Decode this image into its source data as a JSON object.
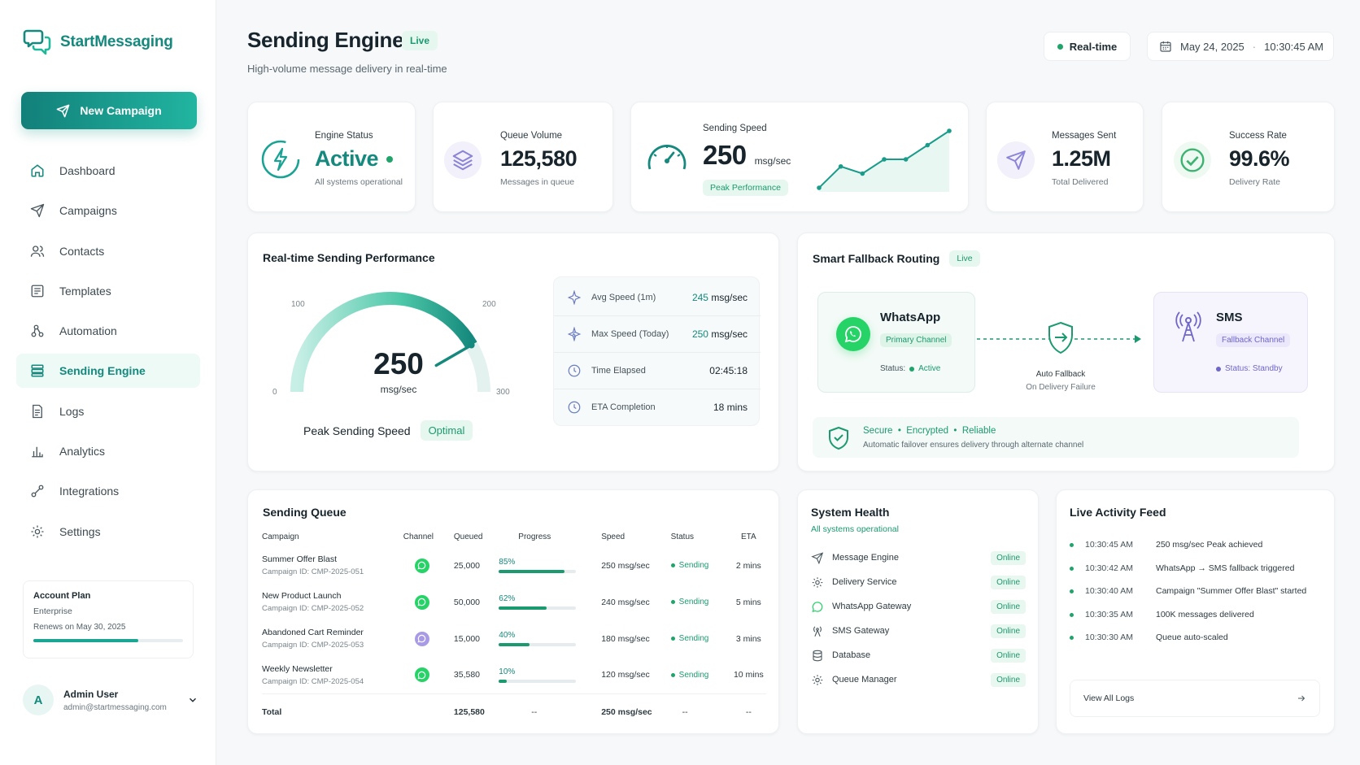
{
  "brand": {
    "name": "StartMessaging"
  },
  "sidebar": {
    "new_campaign": "New Campaign",
    "items": [
      {
        "label": "Dashboard",
        "icon": "home-icon"
      },
      {
        "label": "Campaigns",
        "icon": "send-icon"
      },
      {
        "label": "Contacts",
        "icon": "users-icon"
      },
      {
        "label": "Templates",
        "icon": "template-icon"
      },
      {
        "label": "Automation",
        "icon": "automation-icon"
      },
      {
        "label": "Sending Engine",
        "icon": "server-icon"
      },
      {
        "label": "Logs",
        "icon": "document-icon"
      },
      {
        "label": "Analytics",
        "icon": "bar-chart-icon"
      },
      {
        "label": "Integrations",
        "icon": "link-icon"
      },
      {
        "label": "Settings",
        "icon": "gear-icon"
      }
    ],
    "active_item": "Sending Engine",
    "plan": {
      "title": "Account Plan",
      "tier": "Enterprise",
      "renews": "Renews on May 30, 2025",
      "progress": 0.7
    },
    "user": {
      "initial": "A",
      "name": "Admin User",
      "email": "admin@startmessaging.com"
    }
  },
  "header": {
    "title": "Sending Engine",
    "badge": "Live",
    "subtitle": "High-volume message delivery in real-time",
    "realtime": "Real-time",
    "date": "May 24, 2025",
    "time": "10:30:45 AM"
  },
  "stats": {
    "engine": {
      "label": "Engine Status",
      "value": "Active",
      "sub": "All systems operational"
    },
    "queue": {
      "label": "Queue Volume",
      "value": "125,580",
      "sub": "Messages in queue"
    },
    "speed": {
      "label": "Sending Speed",
      "value": "250",
      "unit": "msg/sec",
      "badge": "Peak Performance",
      "sparkline": [
        3,
        6,
        5,
        7,
        7,
        9,
        11
      ]
    },
    "sent": {
      "label": "Messages Sent",
      "value": "1.25M",
      "sub": "Total Delivered"
    },
    "success": {
      "label": "Success Rate",
      "value": "99.6%",
      "sub": "Delivery Rate"
    }
  },
  "performance": {
    "title": "Real-time Sending Performance",
    "gauge": {
      "value": 250,
      "value_text": "250",
      "unit": "msg/sec",
      "min": 0,
      "max": 300,
      "tick_0": "0",
      "tick_100": "100",
      "tick_200": "200",
      "tick_300": "300"
    },
    "caption": "Peak Sending Speed",
    "caption_badge": "Optimal",
    "metrics": [
      {
        "label": "Avg Speed (1m)",
        "value_num": "245",
        "value_unit": " msg/sec",
        "icon": "sparkle-icon"
      },
      {
        "label": "Max Speed (Today)",
        "value_num": "250",
        "value_unit": " msg/sec",
        "icon": "sparkle-bolt-icon"
      },
      {
        "label": "Time Elapsed",
        "value_num": "",
        "value_unit": "02:45:18",
        "icon": "clock-icon"
      },
      {
        "label": "ETA Completion",
        "value_num": "",
        "value_unit": "18 mins",
        "icon": "clock-icon"
      }
    ]
  },
  "fallback": {
    "title": "Smart Fallback Routing",
    "badge": "Live",
    "primary": {
      "name": "WhatsApp",
      "badge": "Primary Channel",
      "status_label": "Status:",
      "status": "Active"
    },
    "secondary": {
      "name": "SMS",
      "badge": "Fallback Channel",
      "status": "Status: Standby"
    },
    "connector": {
      "title": "Auto Fallback",
      "sub": "On Delivery Failure"
    },
    "secure": {
      "headline": "Secure  •  Encrypted  •  Reliable",
      "sub": "Automatic failover ensures delivery through alternate channel"
    }
  },
  "queue_table": {
    "title": "Sending Queue",
    "headers": [
      "Campaign",
      "Channel",
      "Queued",
      "Progress",
      "Speed",
      "Status",
      "ETA"
    ],
    "rows": [
      {
        "name": "Summer Offer Blast",
        "id": "Campaign ID: CMP-2025-051",
        "channel": "whatsapp",
        "queued": "25,000",
        "progress": "85%",
        "progress_value": 0.85,
        "speed": "250 msg/sec",
        "status": "Sending",
        "eta": "2 mins"
      },
      {
        "name": "New Product Launch",
        "id": "Campaign ID: CMP-2025-052",
        "channel": "whatsapp",
        "queued": "50,000",
        "progress": "62%",
        "progress_value": 0.62,
        "speed": "240 msg/sec",
        "status": "Sending",
        "eta": "5 mins"
      },
      {
        "name": "Abandoned Cart Reminder",
        "id": "Campaign ID: CMP-2025-053",
        "channel": "viber",
        "queued": "15,000",
        "progress": "40%",
        "progress_value": 0.4,
        "speed": "180 msg/sec",
        "status": "Sending",
        "eta": "3 mins"
      },
      {
        "name": "Weekly Newsletter",
        "id": "Campaign ID: CMP-2025-054",
        "channel": "whatsapp",
        "queued": "35,580",
        "progress": "10%",
        "progress_value": 0.1,
        "speed": "120 msg/sec",
        "status": "Sending",
        "eta": "10 mins"
      }
    ],
    "total": {
      "label": "Total",
      "queued": "125,580",
      "progress": "--",
      "speed": "250 msg/sec",
      "status": "--",
      "eta": "--"
    }
  },
  "health": {
    "title": "System Health",
    "sub": "All systems operational",
    "items": [
      {
        "label": "Message Engine",
        "status": "Online",
        "icon": "send-icon"
      },
      {
        "label": "Delivery Service",
        "status": "Online",
        "icon": "gear-icon"
      },
      {
        "label": "WhatsApp Gateway",
        "status": "Online",
        "icon": "whatsapp-icon"
      },
      {
        "label": "SMS Gateway",
        "status": "Online",
        "icon": "antenna-icon"
      },
      {
        "label": "Database",
        "status": "Online",
        "icon": "database-icon"
      },
      {
        "label": "Queue Manager",
        "status": "Online",
        "icon": "gear-icon"
      }
    ]
  },
  "feed": {
    "title": "Live Activity Feed",
    "items": [
      {
        "time": "10:30:45 AM",
        "text": "250 msg/sec Peak achieved"
      },
      {
        "time": "10:30:42 AM",
        "text": "WhatsApp → SMS fallback triggered"
      },
      {
        "time": "10:30:40 AM",
        "text": "Campaign \"Summer Offer Blast\" started"
      },
      {
        "time": "10:30:35 AM",
        "text": "100K messages delivered"
      },
      {
        "time": "10:30:30 AM",
        "text": "Queue auto-scaled"
      }
    ],
    "view_all": "View All Logs"
  },
  "colors": {
    "primary": "#15897d",
    "accent": "#1fa46a",
    "whatsapp": "#25d366",
    "purple": "#8b84d8"
  }
}
